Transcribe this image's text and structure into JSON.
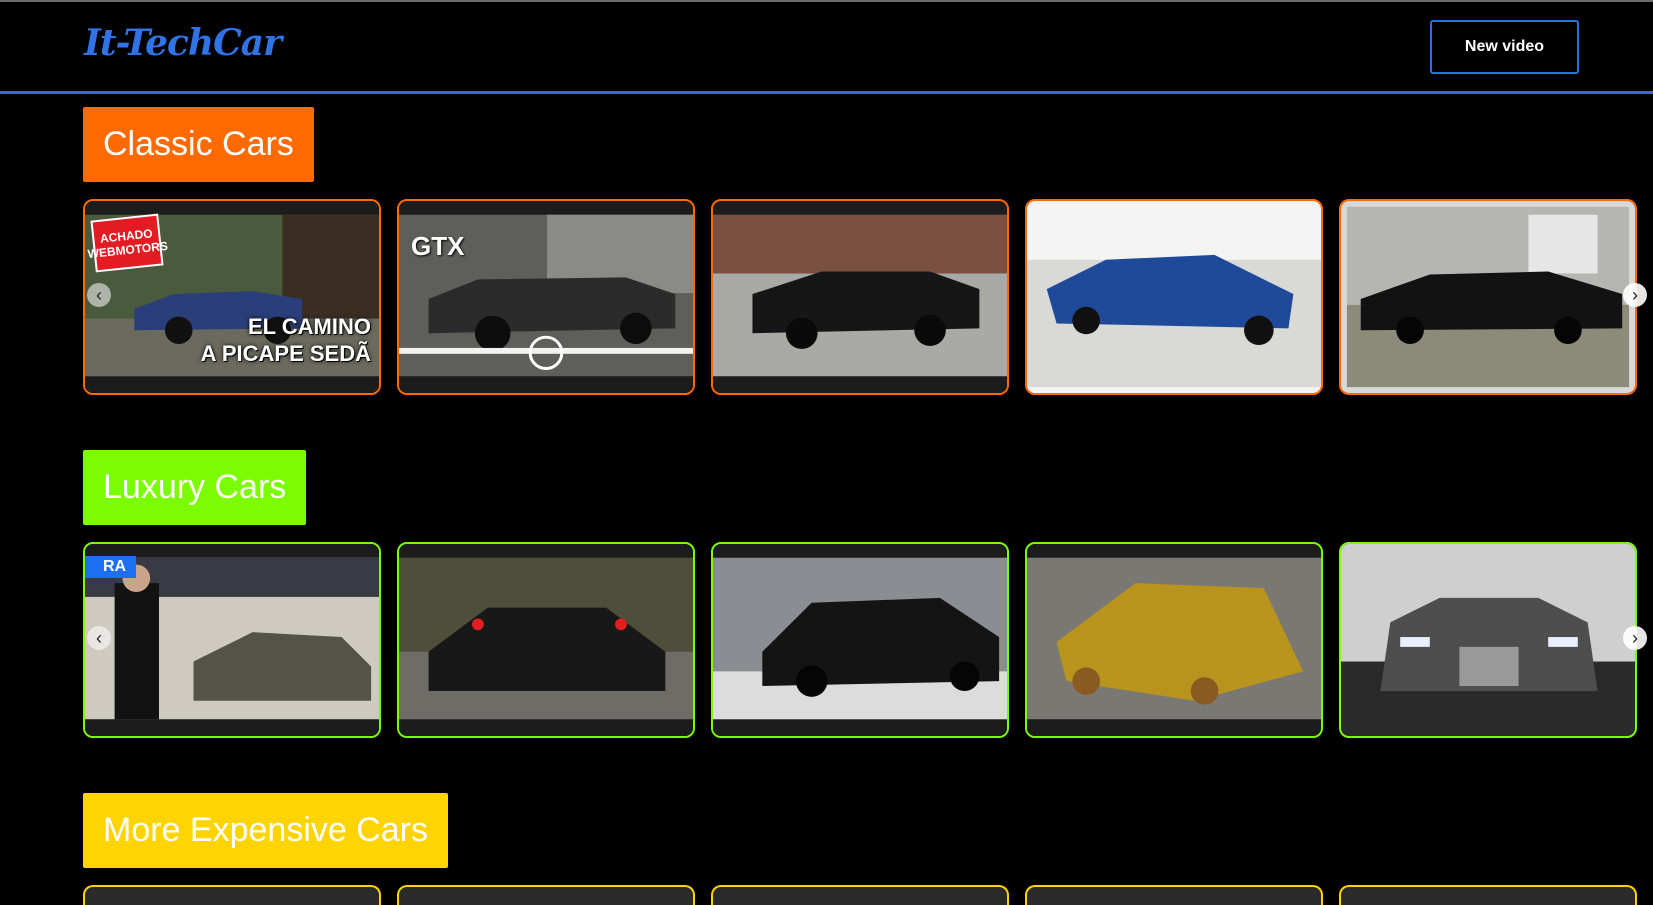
{
  "header": {
    "logo": "It-TechCar",
    "new_video_label": "New video"
  },
  "colors": {
    "accent_blue": "#2a6fe0",
    "classic": "#ff6a00",
    "luxury": "#7cfc00",
    "expensive": "#ffd400"
  },
  "sections": [
    {
      "title": "Classic Cars",
      "cards": [
        {
          "caption_line1": "EL CAMINO",
          "caption_line2": "A PICAPE SEDÃ",
          "logo": "ACHADO WEBMOTORS"
        },
        {
          "tag": "GTX"
        },
        {},
        {},
        {}
      ]
    },
    {
      "title": "Luxury Cars",
      "cards": [
        {
          "badge": "RA"
        },
        {},
        {},
        {},
        {}
      ]
    },
    {
      "title": "More Expensive Cars"
    }
  ],
  "icons": {
    "prev": "chevron-left-icon",
    "next": "chevron-right-icon"
  }
}
